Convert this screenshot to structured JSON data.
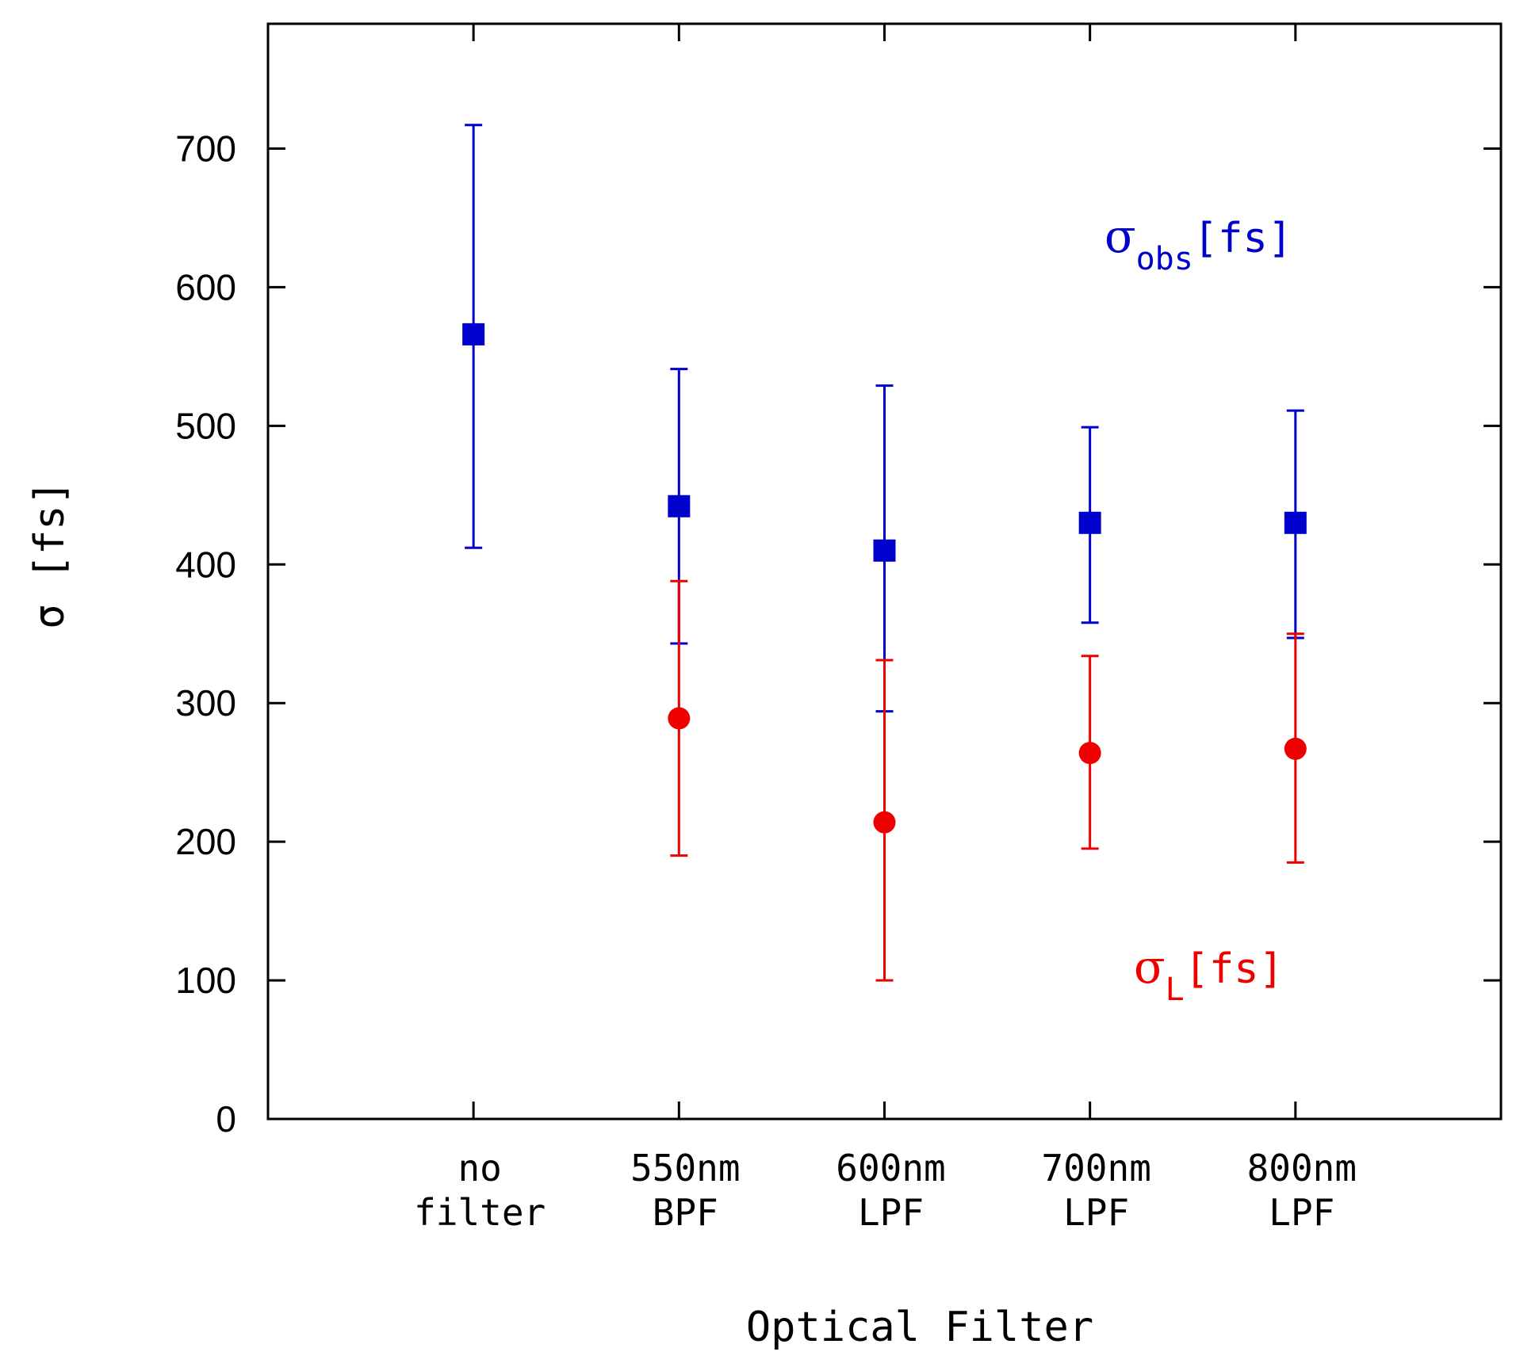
{
  "chart_data": {
    "type": "scatter",
    "title": "",
    "xlabel": "Optical Filter",
    "ylabel": "σ [fs]",
    "ylim": [
      0,
      790
    ],
    "yticks": [
      0,
      100,
      200,
      300,
      400,
      500,
      600,
      700
    ],
    "grid": false,
    "categories": [
      [
        "no",
        "filter"
      ],
      [
        "550nm",
        "BPF"
      ],
      [
        "600nm",
        "LPF"
      ],
      [
        "700nm",
        "LPF"
      ],
      [
        "800nm",
        "LPF"
      ]
    ],
    "series": [
      {
        "name": "σobs[fs]",
        "color": "#0000cc",
        "marker": "square",
        "points": [
          {
            "category": 0,
            "y": 566,
            "y_low": 412,
            "y_high": 717
          },
          {
            "category": 1,
            "y": 442,
            "y_low": 343,
            "y_high": 541
          },
          {
            "category": 2,
            "y": 410,
            "y_low": 294,
            "y_high": 529
          },
          {
            "category": 3,
            "y": 430,
            "y_low": 358,
            "y_high": 499
          },
          {
            "category": 4,
            "y": 430,
            "y_low": 347,
            "y_high": 511
          }
        ]
      },
      {
        "name": "σL[fs]",
        "color": "#ee0000",
        "marker": "circle",
        "points": [
          {
            "category": 1,
            "y": 289,
            "y_low": 190,
            "y_high": 388
          },
          {
            "category": 2,
            "y": 214,
            "y_low": 100,
            "y_high": 331
          },
          {
            "category": 3,
            "y": 264,
            "y_low": 195,
            "y_high": 334
          },
          {
            "category": 4,
            "y": 267,
            "y_low": 185,
            "y_high": 350
          }
        ]
      }
    ],
    "annotations": [
      {
        "series": 0,
        "symbol": "σ",
        "subscript": "obs",
        "text": "[fs]",
        "color": "#0000cc"
      },
      {
        "series": 1,
        "symbol": "σ",
        "subscript": "L",
        "text": "[fs]",
        "color": "#ee0000"
      }
    ]
  }
}
